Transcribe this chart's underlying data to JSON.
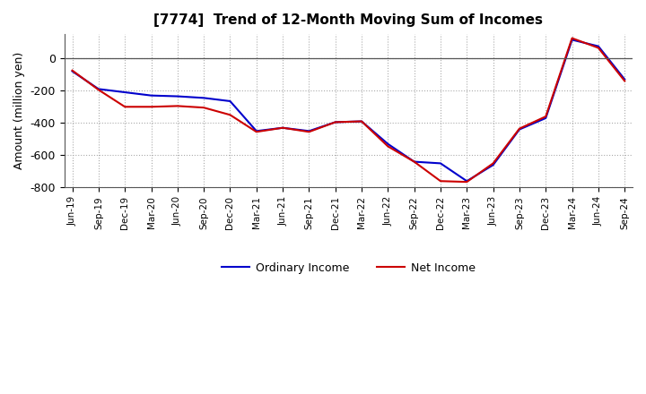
{
  "title": "[7774]  Trend of 12-Month Moving Sum of Incomes",
  "ylabel": "Amount (million yen)",
  "xlabels": [
    "Jun-19",
    "Sep-19",
    "Dec-19",
    "Mar-20",
    "Jun-20",
    "Sep-20",
    "Dec-20",
    "Mar-21",
    "Jun-21",
    "Sep-21",
    "Dec-21",
    "Mar-22",
    "Jun-22",
    "Sep-22",
    "Dec-22",
    "Mar-23",
    "Jun-23",
    "Sep-23",
    "Dec-23",
    "Mar-24",
    "Jun-24",
    "Sep-24"
  ],
  "ylim": [
    -800,
    150
  ],
  "yticks": [
    -800,
    -600,
    -400,
    -200,
    0
  ],
  "ordinary_income": [
    -80,
    -190,
    -210,
    -230,
    -235,
    -245,
    -265,
    -450,
    -430,
    -450,
    -395,
    -390,
    -530,
    -640,
    -650,
    -760,
    -660,
    -440,
    -370,
    115,
    75,
    -130
  ],
  "net_income": [
    -75,
    -195,
    -300,
    -300,
    -295,
    -305,
    -350,
    -455,
    -430,
    -455,
    -395,
    -390,
    -545,
    -640,
    -760,
    -765,
    -650,
    -435,
    -360,
    125,
    65,
    -140
  ],
  "ordinary_color": "#0000cc",
  "net_color": "#cc0000",
  "background_color": "#ffffff",
  "grid_color": "#aaaaaa",
  "legend_ordinary": "Ordinary Income",
  "legend_net": "Net Income"
}
